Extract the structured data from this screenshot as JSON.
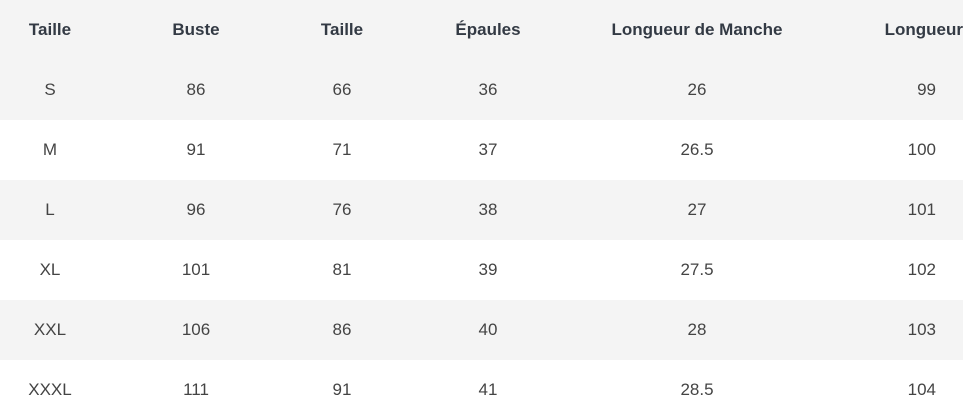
{
  "table": {
    "headers": [
      "Taille",
      "Buste",
      "Taille",
      "Épaules",
      "Longueur de Manche",
      "Longueur"
    ],
    "rows": [
      [
        "S",
        "86",
        "66",
        "36",
        "26",
        "99"
      ],
      [
        "M",
        "91",
        "71",
        "37",
        "26.5",
        "100"
      ],
      [
        "L",
        "96",
        "76",
        "38",
        "27",
        "101"
      ],
      [
        "XL",
        "101",
        "81",
        "39",
        "27.5",
        "102"
      ],
      [
        "XXL",
        "106",
        "86",
        "40",
        "28",
        "103"
      ],
      [
        "XXXL",
        "111",
        "91",
        "41",
        "28.5",
        "104"
      ]
    ]
  },
  "colors": {
    "header_bg": "#f4f4f4",
    "stripe_bg": "#f4f4f4",
    "header_text": "#333a44",
    "body_text": "#444444"
  }
}
